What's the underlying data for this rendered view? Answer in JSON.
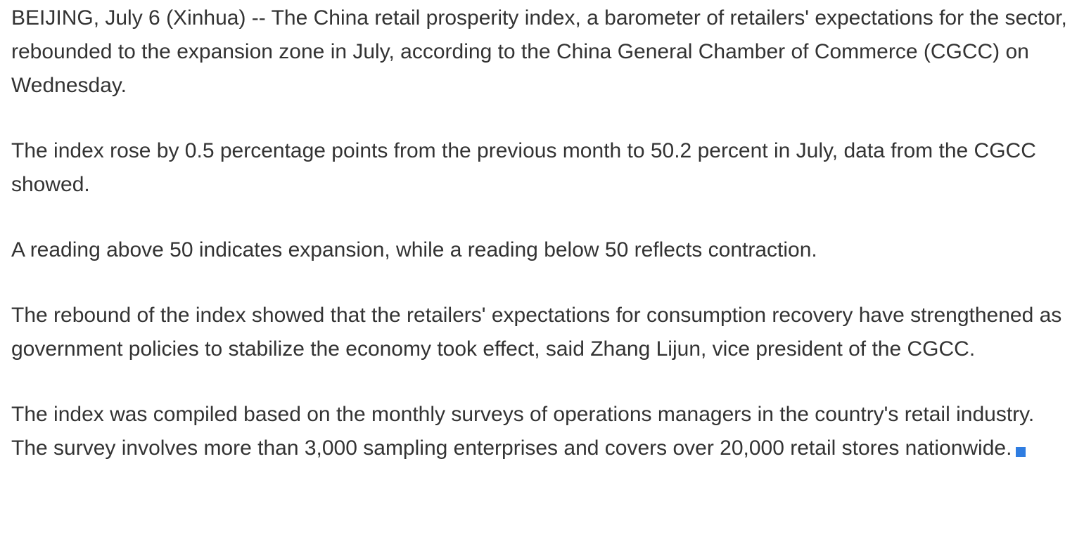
{
  "article": {
    "paragraphs": [
      "BEIJING, July 6 (Xinhua) -- The China retail prosperity index, a barometer of retailers' expectations for the sector, rebounded to the expansion zone in July, according to the China General Chamber of Commerce (CGCC) on Wednesday.",
      "The index rose by 0.5 percentage points from the previous month to 50.2 percent in July, data from the CGCC showed.",
      "A reading above 50 indicates expansion, while a reading below 50 reflects contraction.",
      "The rebound of the index showed that the retailers' expectations for consumption recovery have strengthened as government policies to stabilize the economy took effect, said Zhang Lijun, vice president of the CGCC.",
      "The index was compiled based on the monthly surveys of operations managers in the country's retail industry. The survey involves more than 3,000 sampling enterprises and covers over 20,000 retail stores nationwide."
    ],
    "end_mark_color": "#2f7de1"
  }
}
